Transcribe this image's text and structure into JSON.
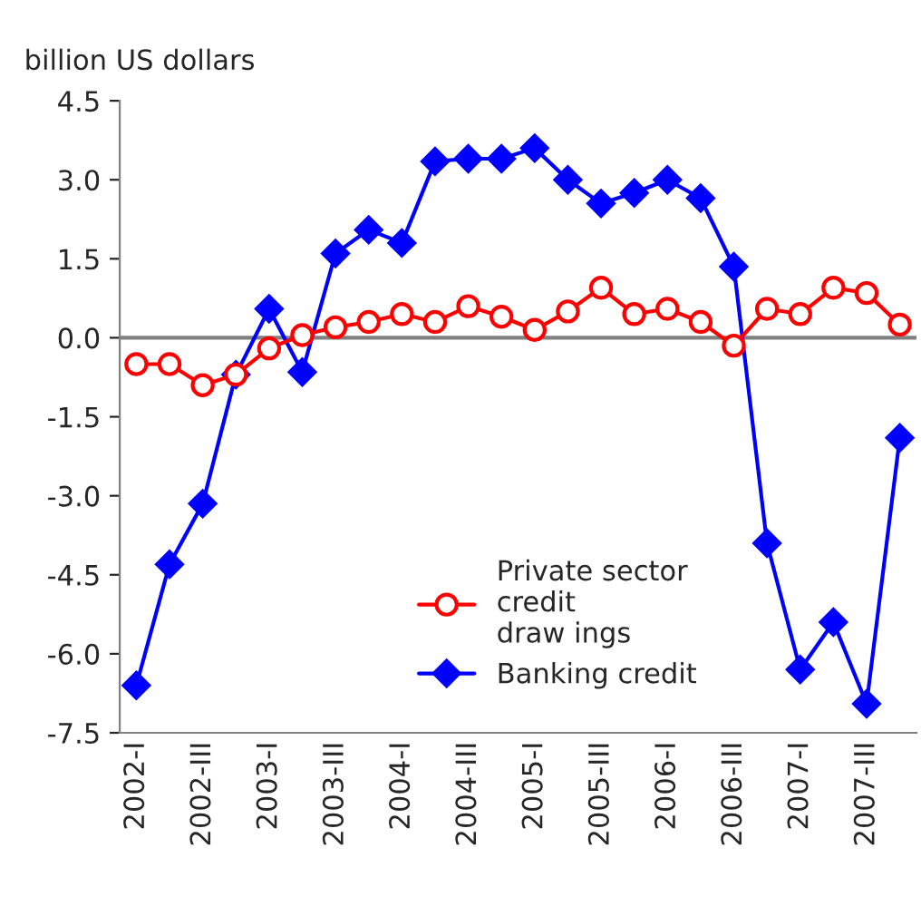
{
  "chart_data": {
    "type": "line",
    "ylabel": "billion US dollars",
    "categories": [
      "2002-I",
      null,
      "2002-III",
      null,
      "2003-I",
      null,
      "2003-III",
      null,
      "2004-I",
      null,
      "2004-III",
      null,
      "2005-I",
      null,
      "2005-III",
      null,
      "2006-I",
      null,
      "2006-III",
      null,
      "2007-I",
      null,
      "2007-III",
      null
    ],
    "series": [
      {
        "name": "Private sector\ncredit\ndraw ings",
        "color": "#ff0000",
        "marker": "circle",
        "values": [
          -0.5,
          -0.5,
          -0.9,
          -0.7,
          -0.2,
          0.05,
          0.2,
          0.3,
          0.45,
          0.3,
          0.6,
          0.4,
          0.15,
          0.5,
          0.95,
          0.45,
          0.55,
          0.3,
          -0.15,
          0.55,
          0.45,
          0.95,
          0.85,
          0.25
        ]
      },
      {
        "name": "Banking credit",
        "color": "#0000ff",
        "marker": "diamond",
        "values": [
          -6.6,
          -4.3,
          -3.15,
          -0.7,
          0.55,
          -0.65,
          1.6,
          2.05,
          1.8,
          3.35,
          3.4,
          3.4,
          3.6,
          3.0,
          2.55,
          2.75,
          3.0,
          2.65,
          1.35,
          -3.9,
          -6.3,
          -5.4,
          -6.95,
          -1.9
        ]
      }
    ],
    "ylim": [
      -7.5,
      4.5
    ],
    "yticks": [
      {
        "value": -7.5,
        "label": "-7.5"
      },
      {
        "value": -6.0,
        "label": "-6.0"
      },
      {
        "value": -4.5,
        "label": "-4.5"
      },
      {
        "value": -3.0,
        "label": "-3.0"
      },
      {
        "value": -1.5,
        "label": "-1.5"
      },
      {
        "value": 0.0,
        "label": "0.0"
      },
      {
        "value": 1.5,
        "label": "1.5"
      },
      {
        "value": 3.0,
        "label": "3.0"
      },
      {
        "value": 4.5,
        "label": "4.5"
      }
    ],
    "ref_lines": [
      {
        "axis": "y",
        "value": 0,
        "color": "#808080"
      }
    ],
    "grid": false,
    "legend": "bottom"
  }
}
